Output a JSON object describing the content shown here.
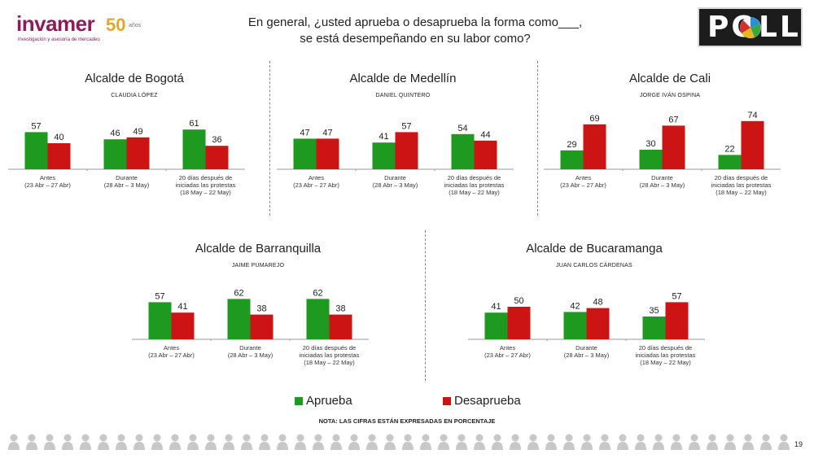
{
  "header": {
    "logo_text": "invamer",
    "logo_anniversary": "50",
    "logo_anos": "años",
    "logo_tagline": "investigación y asesoría de mercadeo",
    "question_line1": "En general, ¿usted aprueba o desaprueba la forma como___,",
    "question_line2": "se está desempeñando en su labor como?",
    "poll_logo": "POLL"
  },
  "colors": {
    "aprueba": "#1e9a21",
    "desaprueba": "#cc1414",
    "axis": "#9a9a9a",
    "divider": "#888888"
  },
  "legend": {
    "aprueba": "Aprueba",
    "desaprueba": "Desaprueba"
  },
  "footer": {
    "note": "NOTA: LAS CIFRAS ESTÁN EXPRESADAS EN PORCENTAJE",
    "page_number": "19",
    "people_icon": "person-icon"
  },
  "chart_data": [
    {
      "type": "bar",
      "title": "Alcalde de Bogotá",
      "subtitle": "CLAUDIA LÓPEZ",
      "categories": [
        "Antes\n(23 Abr – 27 Abr)",
        "Durante\n(28 Abr – 3 May)",
        "20 días después de\niniciadas las protestas\n(18 May – 22 May)"
      ],
      "series": [
        {
          "name": "Aprueba",
          "values": [
            57,
            46,
            61
          ]
        },
        {
          "name": "Desaprueba",
          "values": [
            40,
            49,
            36
          ]
        }
      ]
    },
    {
      "type": "bar",
      "title": "Alcalde de Medellín",
      "subtitle": "DANIEL QUINTERO",
      "categories": [
        "Antes\n(23 Abr – 27 Abr)",
        "Durante\n(28 Abr – 3 May)",
        "20 días después de\niniciadas las protestas\n(18 May – 22 May)"
      ],
      "series": [
        {
          "name": "Aprueba",
          "values": [
            47,
            41,
            54
          ]
        },
        {
          "name": "Desaprueba",
          "values": [
            47,
            57,
            44
          ]
        }
      ]
    },
    {
      "type": "bar",
      "title": "Alcalde de Cali",
      "subtitle": "JORGE IVÁN OSPINA",
      "categories": [
        "Antes\n(23 Abr – 27 Abr)",
        "Durante\n(28 Abr – 3 May)",
        "20 días después de\niniciadas las protestas\n(18 May – 22 May)"
      ],
      "series": [
        {
          "name": "Aprueba",
          "values": [
            29,
            30,
            22
          ]
        },
        {
          "name": "Desaprueba",
          "values": [
            69,
            67,
            74
          ]
        }
      ]
    },
    {
      "type": "bar",
      "title": "Alcalde de Barranquilla",
      "subtitle": "JAIME PUMAREJO",
      "categories": [
        "Antes\n(23 Abr – 27 Abr)",
        "Durante\n(28 Abr – 3 May)",
        "20 días después de\niniciadas las protestas\n(18 May – 22 May)"
      ],
      "series": [
        {
          "name": "Aprueba",
          "values": [
            57,
            62,
            62
          ]
        },
        {
          "name": "Desaprueba",
          "values": [
            41,
            38,
            38
          ]
        }
      ]
    },
    {
      "type": "bar",
      "title": "Alcalde de Bucaramanga",
      "subtitle": "JUAN CARLOS CÁRDENAS",
      "categories": [
        "Antes\n(23 Abr – 27 Abr)",
        "Durante\n(28 Abr – 3 May)",
        "20 días después de\niniciadas las protestas\n(18 May – 22 May)"
      ],
      "series": [
        {
          "name": "Aprueba",
          "values": [
            41,
            42,
            35
          ]
        },
        {
          "name": "Desaprueba",
          "values": [
            50,
            48,
            57
          ]
        }
      ]
    }
  ]
}
